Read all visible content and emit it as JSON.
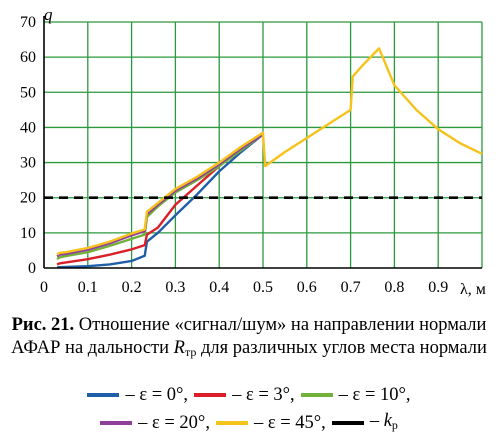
{
  "caption": {
    "label": "Рис. 21.",
    "text_part1": " Отношение «сигнал/шум» на направлении нормали АФАР на дальности ",
    "var_symbol": "R",
    "var_subscript": "тр",
    "text_part2": " для различных углов места нормали"
  },
  "legend": [
    {
      "label": "– ε = 0°,",
      "color": "#1f5fa8"
    },
    {
      "label": "– ε = 3°,",
      "color": "#d9202a"
    },
    {
      "label": "– ε = 10°,",
      "color": "#72b23a"
    },
    {
      "label": "– ε = 20°,",
      "color": "#8f3e9c"
    },
    {
      "label": "– ε = 45°,",
      "color": "#f6c21c"
    },
    {
      "label_prefix": "– ",
      "label_symbol": "k",
      "label_subscript": "р",
      "color": "#000000"
    }
  ],
  "chart_data": {
    "type": "line",
    "ylabel": "q",
    "xlabel": "λ, м",
    "xlim": [
      0,
      1.0
    ],
    "ylim": [
      0,
      70
    ],
    "x_ticks": [
      "0",
      "0.1",
      "0.2",
      "0.3",
      "0.4",
      "0.5",
      "0.6",
      "0.7",
      "0.8",
      "0.9"
    ],
    "y_ticks": [
      "0",
      "10",
      "20",
      "30",
      "40",
      "50",
      "60",
      "70"
    ],
    "grid": true,
    "grid_color": "#2a9a3c",
    "series": [
      {
        "name": "ε = 0°",
        "color": "#1f5fa8",
        "points": [
          [
            0.03,
            0.2
          ],
          [
            0.05,
            0.3
          ],
          [
            0.1,
            0.5
          ],
          [
            0.15,
            1.0
          ],
          [
            0.2,
            2.0
          ],
          [
            0.23,
            3.5
          ],
          [
            0.235,
            7.5
          ],
          [
            0.26,
            10
          ],
          [
            0.3,
            15
          ],
          [
            0.35,
            21
          ],
          [
            0.4,
            27.5
          ],
          [
            0.45,
            33
          ],
          [
            0.5,
            38
          ]
        ]
      },
      {
        "name": "ε = 3°",
        "color": "#d9202a",
        "points": [
          [
            0.03,
            1.0
          ],
          [
            0.035,
            1.3
          ],
          [
            0.05,
            1.6
          ],
          [
            0.1,
            2.5
          ],
          [
            0.15,
            3.8
          ],
          [
            0.2,
            5.3
          ],
          [
            0.23,
            6.5
          ],
          [
            0.235,
            9.5
          ],
          [
            0.26,
            11.5
          ],
          [
            0.3,
            18
          ],
          [
            0.35,
            23.5
          ],
          [
            0.4,
            29
          ],
          [
            0.45,
            34
          ],
          [
            0.5,
            38.5
          ]
        ]
      },
      {
        "name": "ε = 10°",
        "color": "#72b23a",
        "points": [
          [
            0.03,
            2.5
          ],
          [
            0.035,
            3.0
          ],
          [
            0.05,
            3.4
          ],
          [
            0.1,
            4.5
          ],
          [
            0.15,
            6.3
          ],
          [
            0.2,
            8.3
          ],
          [
            0.23,
            9.5
          ],
          [
            0.235,
            14.5
          ],
          [
            0.26,
            17.5
          ],
          [
            0.3,
            21.5
          ],
          [
            0.35,
            25
          ],
          [
            0.4,
            29
          ],
          [
            0.45,
            33.5
          ],
          [
            0.5,
            38
          ]
        ]
      },
      {
        "name": "ε = 20°",
        "color": "#8f3e9c",
        "points": [
          [
            0.03,
            3.3
          ],
          [
            0.035,
            3.8
          ],
          [
            0.05,
            4.0
          ],
          [
            0.1,
            5.2
          ],
          [
            0.15,
            7.0
          ],
          [
            0.2,
            9.3
          ],
          [
            0.23,
            10.5
          ],
          [
            0.235,
            15.3
          ],
          [
            0.26,
            18
          ],
          [
            0.3,
            22
          ],
          [
            0.35,
            25.5
          ],
          [
            0.4,
            29.5
          ],
          [
            0.45,
            34
          ],
          [
            0.5,
            38
          ]
        ]
      },
      {
        "name": "ε = 45°",
        "color": "#f6c21c",
        "points": [
          [
            0.03,
            3.8
          ],
          [
            0.035,
            4.3
          ],
          [
            0.05,
            4.5
          ],
          [
            0.1,
            5.7
          ],
          [
            0.15,
            7.5
          ],
          [
            0.2,
            9.8
          ],
          [
            0.23,
            11
          ],
          [
            0.235,
            16
          ],
          [
            0.26,
            18.5
          ],
          [
            0.3,
            22.5
          ],
          [
            0.35,
            26
          ],
          [
            0.4,
            30
          ],
          [
            0.45,
            34.5
          ],
          [
            0.5,
            38.5
          ],
          [
            0.505,
            29
          ],
          [
            0.55,
            33
          ],
          [
            0.6,
            37
          ],
          [
            0.65,
            41
          ],
          [
            0.7,
            45
          ],
          [
            0.705,
            54.5
          ],
          [
            0.73,
            58
          ],
          [
            0.765,
            62.5
          ],
          [
            0.8,
            52
          ],
          [
            0.85,
            45
          ],
          [
            0.9,
            39.5
          ],
          [
            0.95,
            35.5
          ],
          [
            1.0,
            32.5
          ]
        ]
      },
      {
        "name": "kр",
        "color": "#000000",
        "dashed": true,
        "points": [
          [
            0.0,
            20
          ],
          [
            1.0,
            20
          ]
        ]
      }
    ]
  }
}
